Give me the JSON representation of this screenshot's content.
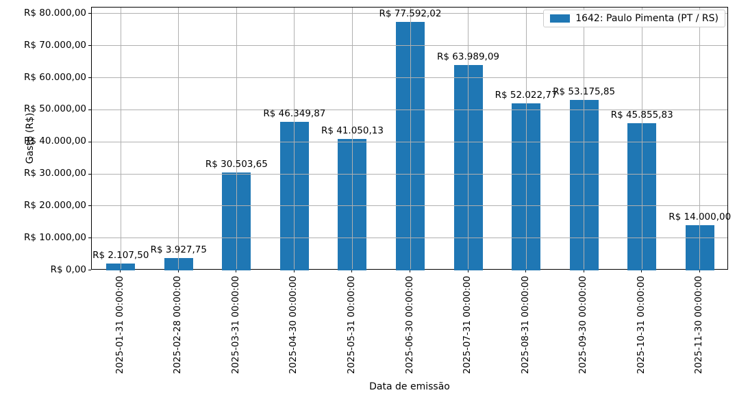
{
  "chart_data": {
    "type": "bar",
    "title": "",
    "xlabel": "Data de emissão",
    "ylabel": "Gasto (R$)",
    "ylim": [
      0,
      82000
    ],
    "ytick_step": 10000,
    "ytick_values": [
      0,
      10000,
      20000,
      30000,
      40000,
      50000,
      60000,
      70000,
      80000
    ],
    "ytick_labels": [
      "R$ 0,00",
      "R$ 10.000,00",
      "R$ 20.000,00",
      "R$ 30.000,00",
      "R$ 40.000,00",
      "R$ 50.000,00",
      "R$ 60.000,00",
      "R$ 70.000,00",
      "R$ 80.000,00"
    ],
    "categories": [
      "2025-01-31 00:00:00",
      "2025-02-28 00:00:00",
      "2025-03-31 00:00:00",
      "2025-04-30 00:00:00",
      "2025-05-31 00:00:00",
      "2025-06-30 00:00:00",
      "2025-07-31 00:00:00",
      "2025-08-31 00:00:00",
      "2025-09-30 00:00:00",
      "2025-10-31 00:00:00",
      "2025-11-30 00:00:00"
    ],
    "values": [
      2107.5,
      3927.75,
      30503.65,
      46349.87,
      41050.13,
      77592.02,
      63989.09,
      52022.77,
      53175.85,
      45855.83,
      14000.0
    ],
    "bar_labels": [
      "R$ 2.107,50",
      "R$ 3.927,75",
      "R$ 30.503,65",
      "R$ 46.349,87",
      "R$ 41.050,13",
      "R$ 77.592,02",
      "R$ 63.989,09",
      "R$ 52.022,77",
      "R$ 53.175,85",
      "R$ 45.855,83",
      "R$ 14.000,00"
    ],
    "legend": {
      "label": "1642: Paulo Pimenta (PT / RS)",
      "position": "upper right"
    },
    "grid": true,
    "colors": {
      "bar": "#1f77b4",
      "grid": "#b0b0b0",
      "spine": "#000000",
      "text": "#000000",
      "legend_border": "#cccccc"
    }
  }
}
